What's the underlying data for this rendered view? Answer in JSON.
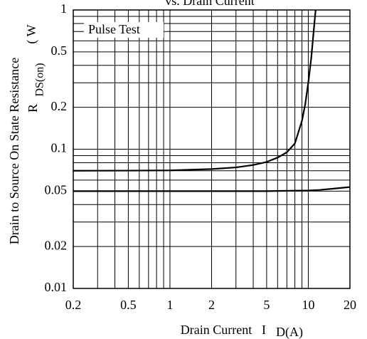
{
  "chart_data": {
    "type": "line",
    "title": "vs. Drain Current",
    "xlabel": "Drain Current",
    "xlabel_symbol": "I",
    "xlabel_sub": "D(A)",
    "ylabel": "Drain to Source On State Resistance",
    "ylabel_symbol": "R",
    "ylabel_sub": "DS(on)",
    "ylabel_unit": "( W",
    "annotation": "Pulse Test",
    "xscale": "log",
    "yscale": "log",
    "grid": true,
    "xlim": [
      0.2,
      20
    ],
    "ylim": [
      0.01,
      1
    ],
    "xticks": [
      0.2,
      0.5,
      1,
      2,
      5,
      10,
      20
    ],
    "yticks": [
      0.01,
      0.02,
      0.05,
      0.1,
      0.2,
      0.5,
      1
    ],
    "xgrid": [
      0.3,
      0.4,
      0.6,
      0.7,
      0.8,
      0.9,
      3,
      4,
      6,
      7,
      8,
      9
    ],
    "ygrid": [
      0.03,
      0.04,
      0.06,
      0.07,
      0.08,
      0.09,
      0.3,
      0.4,
      0.6,
      0.7,
      0.8,
      0.9
    ],
    "series": [
      {
        "color": "#000000",
        "x": [
          0.2,
          0.5,
          1,
          2,
          3,
          4,
          5,
          6,
          7,
          8,
          9,
          9.5,
          10,
          10.5,
          11,
          11.3
        ],
        "values": [
          0.07,
          0.0702,
          0.0705,
          0.072,
          0.074,
          0.077,
          0.081,
          0.087,
          0.095,
          0.11,
          0.16,
          0.21,
          0.3,
          0.45,
          0.75,
          1
        ]
      },
      {
        "color": "#000000",
        "x": [
          0.2,
          1,
          5,
          10,
          12,
          15,
          20
        ],
        "values": [
          0.05,
          0.05,
          0.05,
          0.0505,
          0.051,
          0.052,
          0.0535
        ]
      }
    ]
  }
}
